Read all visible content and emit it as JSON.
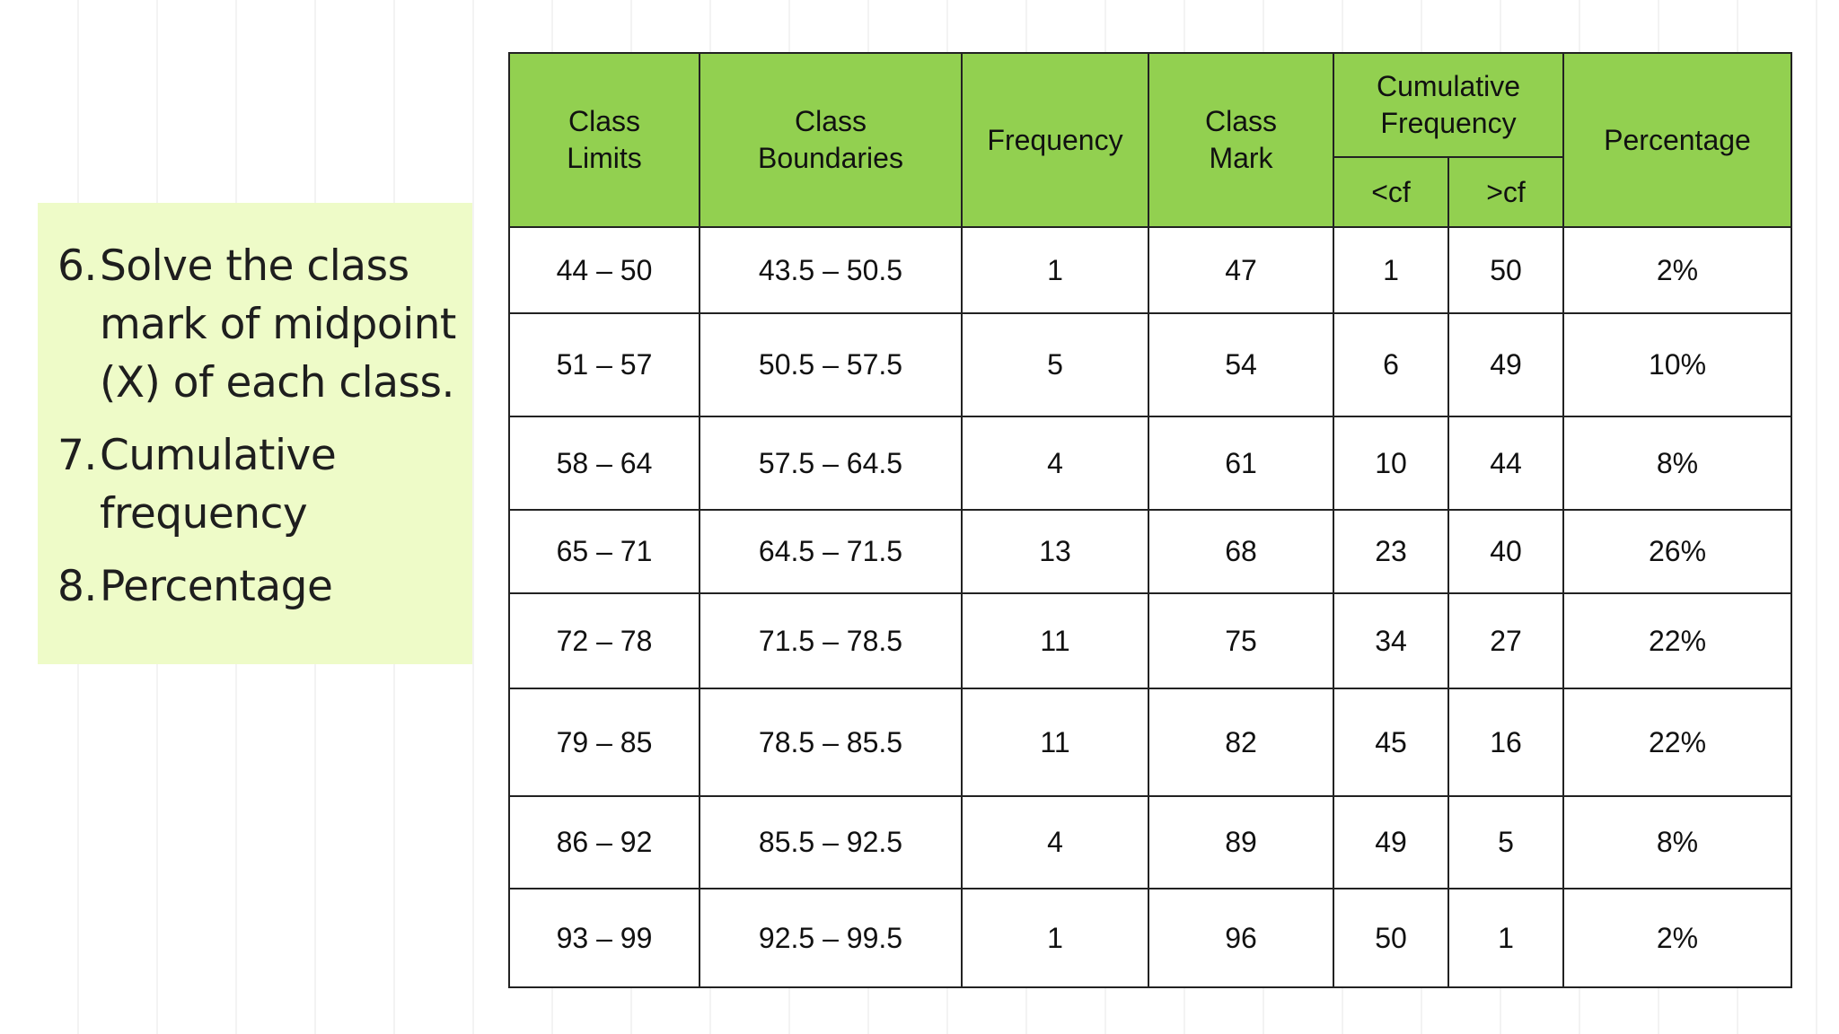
{
  "notes": [
    {
      "num": "6.",
      "text": "Solve the class mark of midpoint (X) of each class."
    },
    {
      "num": "7.",
      "text": "Cumulative frequency"
    },
    {
      "num": "8.",
      "text": "Percentage"
    }
  ],
  "table": {
    "headers": {
      "class_limits": "Class Limits",
      "class_boundaries": "Class Boundaries",
      "frequency": "Frequency",
      "class_mark": "Class Mark",
      "cumulative_frequency": "Cumulative Frequency",
      "less_cf": "<cf",
      "greater_cf": ">cf",
      "percentage": "Percentage"
    },
    "rows": [
      [
        "44 – 50",
        "43.5 – 50.5",
        "1",
        "47",
        "1",
        "50",
        "2%"
      ],
      [
        "51 – 57",
        "50.5 – 57.5",
        "5",
        "54",
        "6",
        "49",
        "10%"
      ],
      [
        "58 – 64",
        "57.5 – 64.5",
        "4",
        "61",
        "10",
        "44",
        "8%"
      ],
      [
        "65 – 71",
        "64.5 – 71.5",
        "13",
        "68",
        "23",
        "40",
        "26%"
      ],
      [
        "72 – 78",
        "71.5 – 78.5",
        "11",
        "75",
        "34",
        "27",
        "22%"
      ],
      [
        "79 – 85",
        "78.5 – 85.5",
        "11",
        "82",
        "45",
        "16",
        "22%"
      ],
      [
        "86 – 92",
        "85.5 – 92.5",
        "4",
        "89",
        "49",
        "5",
        "8%"
      ],
      [
        "93 – 99",
        "92.5 – 99.5",
        "1",
        "96",
        "50",
        "1",
        "2%"
      ]
    ]
  },
  "colors": {
    "header_fill": "#92d050",
    "note_fill": "#eefbc8"
  }
}
